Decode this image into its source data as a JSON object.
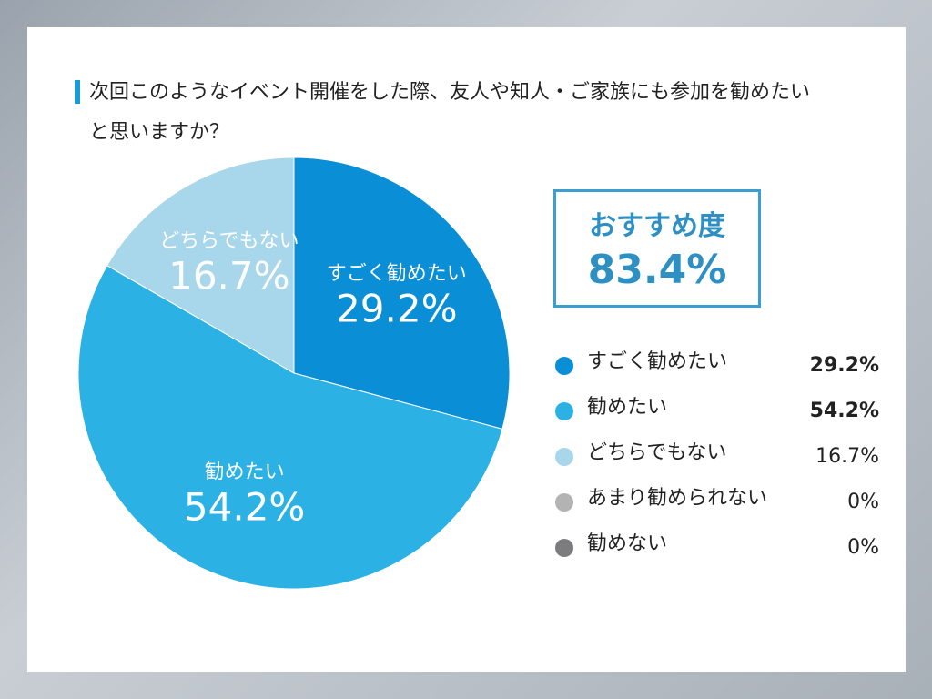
{
  "chart_data": {
    "type": "pie",
    "title": "次回このようなイベント開催をした際、友人や知人・ご家族にも参加を勧めたいと思いますか？",
    "categories": [
      "すごく勧めたい",
      "勧めたい",
      "どちらでもない",
      "あまり勧められない",
      "勧めない"
    ],
    "values": [
      29.2,
      54.2,
      16.7,
      0,
      0
    ],
    "value_labels": [
      "29.2%",
      "54.2%",
      "16.7%",
      "0%",
      "0%"
    ],
    "colors": [
      "#0a8fd6",
      "#2cb1e5",
      "#a8d6ea",
      "#b3b3b3",
      "#7c7b7e"
    ],
    "annotations": [
      "おすすめ度",
      "83.4%"
    ]
  }
}
